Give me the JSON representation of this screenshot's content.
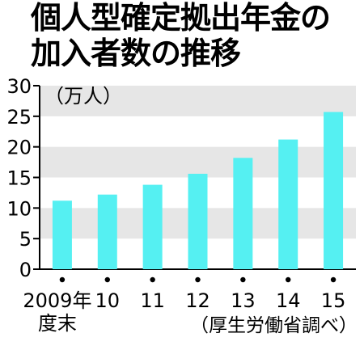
{
  "title": {
    "line1": "個人型確定拠出年金の",
    "line2": "加入者数の推移"
  },
  "source": "（厚生労働省調べ）",
  "colors": {
    "bar": "#55f0f2",
    "band": "#e6e6e6",
    "text": "#000000"
  },
  "chart_data": {
    "type": "bar",
    "unit": "（万人）",
    "categories": [
      "2009年度末",
      "10",
      "11",
      "12",
      "13",
      "14",
      "15"
    ],
    "x_tick_lines": [
      [
        "2009年",
        "度末"
      ],
      [
        "10"
      ],
      [
        "11"
      ],
      [
        "12"
      ],
      [
        "13"
      ],
      [
        "14"
      ],
      [
        "15"
      ]
    ],
    "values": [
      11.2,
      12.2,
      13.8,
      15.6,
      18.2,
      21.2,
      25.7
    ],
    "ylim": [
      0,
      30
    ],
    "yticks": [
      0,
      5,
      10,
      15,
      20,
      25,
      30
    ],
    "grid": "alternating horizontal bands",
    "legend": "none"
  }
}
